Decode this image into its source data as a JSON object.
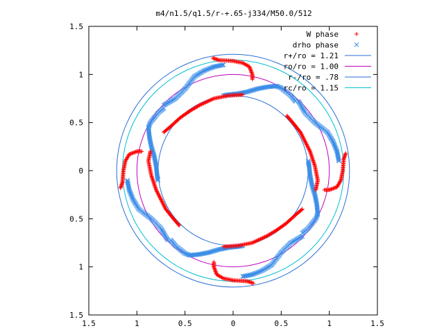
{
  "chart_data": {
    "type": "scatter",
    "title": "m4/n1.5/q1.5/r-+.65-j334/M50.0/512",
    "xlabel": "",
    "ylabel": "",
    "xlim": [
      -1.5,
      1.5
    ],
    "ylim": [
      -1.5,
      1.5
    ],
    "x_ticks": [
      "1.5",
      "1",
      "0.5",
      "0",
      "0.5",
      "1",
      "1.5"
    ],
    "y_ticks": [
      "1.5",
      "1",
      "0.5",
      "0",
      "0.5",
      "1",
      "1.5"
    ],
    "x_tick_values": [
      -1.5,
      -1,
      -0.5,
      0,
      0.5,
      1,
      1.5
    ],
    "y_tick_values": [
      1.5,
      1,
      0.5,
      0,
      -0.5,
      -1,
      -1.5
    ],
    "grid": false,
    "legend_position": "top-right",
    "series": [
      {
        "name": "W phase",
        "marker": "plus",
        "color": "#ff0000",
        "segments": [
          [
            [
              -0.21,
              1.17
            ],
            [
              -0.15,
              1.15
            ],
            [
              0.0,
              1.14
            ],
            [
              0.1,
              1.12
            ],
            [
              0.17,
              1.08
            ],
            [
              0.2,
              1.0
            ],
            [
              0.2,
              0.95
            ]
          ],
          [
            [
              1.17,
              0.18
            ],
            [
              1.15,
              0.12
            ],
            [
              1.14,
              0.0
            ],
            [
              1.12,
              -0.1
            ],
            [
              1.08,
              -0.17
            ],
            [
              1.0,
              -0.2
            ],
            [
              0.95,
              -0.2
            ]
          ],
          [
            [
              0.21,
              -1.17
            ],
            [
              0.15,
              -1.15
            ],
            [
              0.0,
              -1.14
            ],
            [
              -0.1,
              -1.12
            ],
            [
              -0.17,
              -1.08
            ],
            [
              -0.2,
              -1.0
            ],
            [
              -0.2,
              -0.95
            ]
          ],
          [
            [
              -1.17,
              -0.18
            ],
            [
              -1.15,
              -0.12
            ],
            [
              -1.14,
              0.0
            ],
            [
              -1.12,
              0.1
            ],
            [
              -1.08,
              0.17
            ],
            [
              -1.0,
              0.2
            ],
            [
              -0.95,
              0.2
            ]
          ],
          [
            [
              -0.72,
              0.4
            ],
            [
              -0.66,
              0.45
            ],
            [
              -0.55,
              0.55
            ],
            [
              -0.45,
              0.62
            ],
            [
              -0.35,
              0.68
            ],
            [
              -0.2,
              0.75
            ],
            [
              -0.05,
              0.78
            ],
            [
              0.1,
              0.79
            ]
          ],
          [
            [
              0.56,
              0.57
            ],
            [
              0.62,
              0.5
            ],
            [
              0.7,
              0.4
            ],
            [
              0.75,
              0.3
            ],
            [
              0.8,
              0.2
            ],
            [
              0.85,
              0.05
            ],
            [
              0.88,
              -0.1
            ],
            [
              0.86,
              -0.2
            ]
          ],
          [
            [
              0.72,
              -0.4
            ],
            [
              0.66,
              -0.45
            ],
            [
              0.55,
              -0.55
            ],
            [
              0.45,
              -0.62
            ],
            [
              0.35,
              -0.68
            ],
            [
              0.2,
              -0.75
            ],
            [
              0.05,
              -0.78
            ],
            [
              -0.1,
              -0.79
            ]
          ],
          [
            [
              -0.56,
              -0.57
            ],
            [
              -0.62,
              -0.5
            ],
            [
              -0.7,
              -0.4
            ],
            [
              -0.75,
              -0.3
            ],
            [
              -0.8,
              -0.2
            ],
            [
              -0.85,
              -0.05
            ],
            [
              -0.88,
              0.1
            ],
            [
              -0.86,
              0.2
            ]
          ]
        ]
      },
      {
        "name": "drho phase",
        "marker": "x",
        "color": "#3b8ee8",
        "segments": [
          [
            [
              -0.72,
              0.68
            ],
            [
              -0.6,
              0.75
            ],
            [
              -0.5,
              0.85
            ],
            [
              -0.4,
              0.98
            ],
            [
              -0.3,
              1.04
            ],
            [
              -0.2,
              1.08
            ],
            [
              -0.1,
              1.1
            ]
          ],
          [
            [
              -0.1,
              0.78
            ],
            [
              -0.05,
              0.79
            ],
            [
              0.05,
              0.8
            ],
            [
              0.15,
              0.82
            ],
            [
              0.25,
              0.85
            ],
            [
              0.35,
              0.87
            ],
            [
              0.45,
              0.88
            ],
            [
              0.5,
              0.86
            ],
            [
              0.6,
              0.78
            ],
            [
              0.65,
              0.72
            ]
          ],
          [
            [
              0.68,
              0.72
            ],
            [
              0.75,
              0.6
            ],
            [
              0.85,
              0.5
            ],
            [
              0.98,
              0.4
            ],
            [
              1.04,
              0.3
            ],
            [
              1.08,
              0.2
            ],
            [
              1.1,
              0.1
            ]
          ],
          [
            [
              0.78,
              0.1
            ],
            [
              0.79,
              0.05
            ],
            [
              0.8,
              -0.05
            ],
            [
              0.82,
              -0.15
            ],
            [
              0.85,
              -0.25
            ],
            [
              0.87,
              -0.35
            ],
            [
              0.88,
              -0.45
            ],
            [
              0.86,
              -0.5
            ],
            [
              0.78,
              -0.6
            ],
            [
              0.72,
              -0.65
            ]
          ],
          [
            [
              0.72,
              -0.68
            ],
            [
              0.6,
              -0.75
            ],
            [
              0.5,
              -0.85
            ],
            [
              0.4,
              -0.98
            ],
            [
              0.3,
              -1.04
            ],
            [
              0.2,
              -1.08
            ],
            [
              0.1,
              -1.1
            ]
          ],
          [
            [
              0.1,
              -0.78
            ],
            [
              0.05,
              -0.79
            ],
            [
              -0.05,
              -0.8
            ],
            [
              -0.15,
              -0.82
            ],
            [
              -0.25,
              -0.85
            ],
            [
              -0.35,
              -0.87
            ],
            [
              -0.45,
              -0.88
            ],
            [
              -0.5,
              -0.86
            ],
            [
              -0.6,
              -0.78
            ],
            [
              -0.65,
              -0.72
            ]
          ],
          [
            [
              -0.68,
              -0.72
            ],
            [
              -0.75,
              -0.6
            ],
            [
              -0.85,
              -0.5
            ],
            [
              -0.98,
              -0.4
            ],
            [
              -1.04,
              -0.3
            ],
            [
              -1.08,
              -0.2
            ],
            [
              -1.1,
              -0.1
            ]
          ],
          [
            [
              -0.78,
              -0.1
            ],
            [
              -0.79,
              -0.05
            ],
            [
              -0.8,
              0.05
            ],
            [
              -0.82,
              0.15
            ],
            [
              -0.85,
              0.25
            ],
            [
              -0.87,
              0.35
            ],
            [
              -0.88,
              0.45
            ],
            [
              -0.86,
              0.5
            ],
            [
              -0.78,
              0.6
            ],
            [
              -0.72,
              0.65
            ]
          ]
        ]
      },
      {
        "name": "r+/ro = 1.21",
        "type": "circle",
        "radius": 1.21,
        "color": "#2a6fd6"
      },
      {
        "name": "ro/ro = 1.00",
        "type": "circle",
        "radius": 1.0,
        "color": "#c000c0"
      },
      {
        "name": "r-/ro = .78",
        "type": "circle",
        "radius": 0.78,
        "color": "#2a6fd6"
      },
      {
        "name": "rc/ro = 1.15",
        "type": "circle",
        "radius": 1.15,
        "color": "#00c0d0"
      }
    ]
  }
}
